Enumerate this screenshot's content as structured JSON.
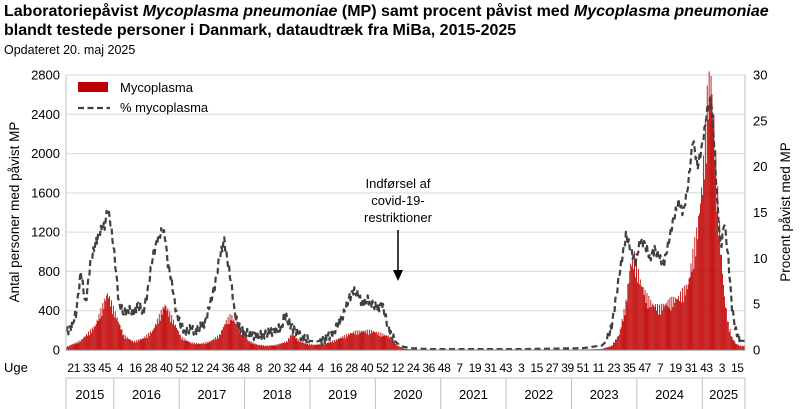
{
  "title": {
    "line1_a": "Laboratoriepåvist ",
    "line1_b": "Mycoplasma pneumoniae",
    "line1_c": " (MP) samt procent påvist med ",
    "line1_d": "Mycoplasma pneumoniae",
    "line2": "blandt testede  personer i Danmark, dataudtræk fra MiBa, 2015-2025"
  },
  "updated": "Opdateret 20. maj 2025",
  "colors": {
    "bars": "#c00000",
    "line": "#404040",
    "grid": "#d9d9d9",
    "axis": "#bfbfbf"
  },
  "chart_data": {
    "type": "bar+line",
    "ylabel_left": "Antal personer med påvist MP",
    "ylabel_right": "Procent påvist med MP",
    "ylim_left": [
      0,
      2800
    ],
    "ylim_right": [
      0,
      30
    ],
    "yticks_left": [
      "0",
      "400",
      "800",
      "1200",
      "1600",
      "2000",
      "2400",
      "2800"
    ],
    "yticks_right": [
      "0",
      "5",
      "10",
      "15",
      "20",
      "25",
      "30"
    ],
    "x_unit_label": "Uge",
    "week_ticks": [
      "21",
      "33",
      "45",
      "4",
      "16",
      "28",
      "40",
      "52",
      "12",
      "24",
      "36",
      "48",
      "8",
      "20",
      "32",
      "44",
      "4",
      "16",
      "28",
      "40",
      "52",
      "12",
      "24",
      "36",
      "48",
      "7",
      "19",
      "31",
      "43",
      "3",
      "15",
      "27",
      "39",
      "51",
      "11",
      "23",
      "35",
      "47",
      "7",
      "19",
      "31",
      "43",
      "3",
      "15"
    ],
    "years": [
      "2015",
      "2016",
      "2017",
      "2018",
      "2019",
      "2020",
      "2021",
      "2022",
      "2023",
      "2024",
      "2025"
    ],
    "legend": [
      "Mycoplasma",
      "% mycoplasma"
    ],
    "legend_position": "top-left",
    "annotation": [
      "Indførsel af",
      "covid-19-",
      "restriktioner"
    ],
    "series": [
      {
        "name": "Mycoplasma",
        "axis": "left",
        "kind": "bar",
        "points": [
          [
            0,
            30
          ],
          [
            15,
            90
          ],
          [
            30,
            230
          ],
          [
            38,
            420
          ],
          [
            43,
            540
          ],
          [
            50,
            370
          ],
          [
            60,
            140
          ],
          [
            70,
            80
          ],
          [
            80,
            110
          ],
          [
            90,
            180
          ],
          [
            98,
            340
          ],
          [
            103,
            430
          ],
          [
            110,
            310
          ],
          [
            120,
            120
          ],
          [
            130,
            70
          ],
          [
            140,
            60
          ],
          [
            150,
            80
          ],
          [
            160,
            140
          ],
          [
            166,
            260
          ],
          [
            172,
            330
          ],
          [
            180,
            210
          ],
          [
            190,
            90
          ],
          [
            200,
            50
          ],
          [
            210,
            40
          ],
          [
            220,
            50
          ],
          [
            230,
            80
          ],
          [
            236,
            160
          ],
          [
            242,
            100
          ],
          [
            250,
            60
          ],
          [
            260,
            50
          ],
          [
            270,
            60
          ],
          [
            280,
            90
          ],
          [
            290,
            130
          ],
          [
            300,
            170
          ],
          [
            310,
            180
          ],
          [
            320,
            180
          ],
          [
            330,
            150
          ],
          [
            338,
            130
          ],
          [
            346,
            40
          ],
          [
            355,
            10
          ],
          [
            365,
            5
          ],
          [
            390,
            2
          ],
          [
            420,
            2
          ],
          [
            480,
            3
          ],
          [
            540,
            5
          ],
          [
            560,
            10
          ],
          [
            570,
            40
          ],
          [
            578,
            150
          ],
          [
            585,
            450
          ],
          [
            590,
            820
          ],
          [
            594,
            880
          ],
          [
            600,
            650
          ],
          [
            606,
            520
          ],
          [
            612,
            440
          ],
          [
            620,
            400
          ],
          [
            630,
            460
          ],
          [
            640,
            500
          ],
          [
            650,
            620
          ],
          [
            655,
            900
          ],
          [
            660,
            1150
          ],
          [
            665,
            1600
          ],
          [
            668,
            2050
          ],
          [
            671,
            2500
          ],
          [
            674,
            2580
          ],
          [
            677,
            2150
          ],
          [
            680,
            1600
          ],
          [
            684,
            1000
          ],
          [
            688,
            500
          ],
          [
            692,
            250
          ],
          [
            696,
            120
          ],
          [
            700,
            60
          ],
          [
            705,
            40
          ]
        ]
      },
      {
        "name": "% mycoplasma",
        "axis": "right",
        "kind": "line",
        "points": [
          [
            0,
            2
          ],
          [
            5,
            2.5
          ],
          [
            10,
            4
          ],
          [
            15,
            8.5
          ],
          [
            20,
            5
          ],
          [
            25,
            9.5
          ],
          [
            30,
            11.5
          ],
          [
            35,
            13
          ],
          [
            40,
            13.5
          ],
          [
            43,
            15.5
          ],
          [
            46,
            14
          ],
          [
            50,
            10.5
          ],
          [
            55,
            5
          ],
          [
            60,
            4
          ],
          [
            65,
            4.5
          ],
          [
            70,
            4
          ],
          [
            75,
            5
          ],
          [
            80,
            4
          ],
          [
            85,
            6.5
          ],
          [
            90,
            10
          ],
          [
            95,
            12
          ],
          [
            100,
            13
          ],
          [
            103,
            12.5
          ],
          [
            106,
            9.5
          ],
          [
            110,
            7.5
          ],
          [
            115,
            4
          ],
          [
            120,
            2.5
          ],
          [
            125,
            2
          ],
          [
            130,
            2.3
          ],
          [
            135,
            2
          ],
          [
            140,
            2.5
          ],
          [
            145,
            3
          ],
          [
            150,
            5
          ],
          [
            155,
            7
          ],
          [
            160,
            10
          ],
          [
            165,
            12
          ],
          [
            168,
            10
          ],
          [
            172,
            7.5
          ],
          [
            176,
            4
          ],
          [
            180,
            2.5
          ],
          [
            185,
            2
          ],
          [
            190,
            1.8
          ],
          [
            195,
            1.6
          ],
          [
            200,
            1.5
          ],
          [
            205,
            1.7
          ],
          [
            210,
            1.8
          ],
          [
            215,
            2
          ],
          [
            220,
            2.2
          ],
          [
            225,
            2.5
          ],
          [
            228,
            4
          ],
          [
            232,
            3
          ],
          [
            236,
            2.5
          ],
          [
            240,
            2
          ],
          [
            245,
            1.5
          ],
          [
            250,
            1.2
          ],
          [
            255,
            1
          ],
          [
            260,
            0.9
          ],
          [
            265,
            1
          ],
          [
            270,
            1.2
          ],
          [
            275,
            1.5
          ],
          [
            280,
            2
          ],
          [
            285,
            3
          ],
          [
            290,
            4
          ],
          [
            295,
            5.5
          ],
          [
            300,
            6.5
          ],
          [
            305,
            6
          ],
          [
            310,
            5
          ],
          [
            315,
            5.5
          ],
          [
            320,
            5
          ],
          [
            325,
            4.5
          ],
          [
            330,
            5
          ],
          [
            335,
            3
          ],
          [
            340,
            1.5
          ],
          [
            345,
            0.8
          ],
          [
            350,
            0.4
          ],
          [
            355,
            0.3
          ],
          [
            360,
            0.2
          ],
          [
            380,
            0.1
          ],
          [
            420,
            0.1
          ],
          [
            480,
            0.1
          ],
          [
            540,
            0.2
          ],
          [
            560,
            0.5
          ],
          [
            565,
            1
          ],
          [
            570,
            2.5
          ],
          [
            575,
            6
          ],
          [
            580,
            9.5
          ],
          [
            585,
            12.5
          ],
          [
            590,
            11
          ],
          [
            595,
            9.5
          ],
          [
            600,
            12
          ],
          [
            605,
            11.5
          ],
          [
            610,
            10
          ],
          [
            615,
            11
          ],
          [
            620,
            10
          ],
          [
            625,
            9.5
          ],
          [
            630,
            12
          ],
          [
            635,
            14.5
          ],
          [
            640,
            16
          ],
          [
            645,
            15
          ],
          [
            650,
            18
          ],
          [
            655,
            23
          ],
          [
            660,
            20
          ],
          [
            665,
            22.5
          ],
          [
            670,
            26
          ],
          [
            674,
            27.5
          ],
          [
            677,
            23
          ],
          [
            680,
            17
          ],
          [
            684,
            11
          ],
          [
            688,
            14
          ],
          [
            692,
            10
          ],
          [
            696,
            4.5
          ],
          [
            700,
            2
          ],
          [
            705,
            1
          ]
        ]
      }
    ]
  }
}
